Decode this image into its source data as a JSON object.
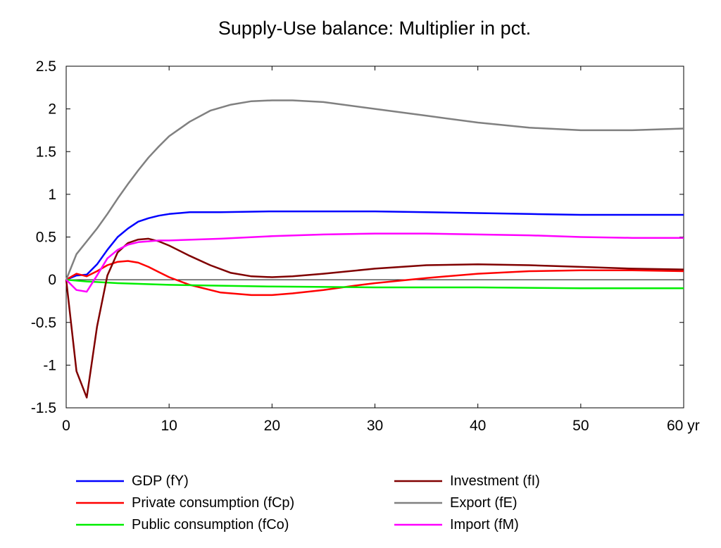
{
  "chart_data": {
    "type": "line",
    "title": "Supply-Use balance: Multiplier in pct.",
    "xlabel": "",
    "ylabel": "",
    "x_unit": "yr",
    "xlim": [
      0,
      60
    ],
    "ylim": [
      -1.5,
      2.5
    ],
    "x_ticks": [
      0,
      10,
      20,
      30,
      40,
      50,
      60
    ],
    "x_tick_labels": [
      "0",
      "10",
      "20",
      "30",
      "40",
      "50",
      "60 yr"
    ],
    "y_ticks": [
      -1.5,
      -1,
      -0.5,
      0,
      0.5,
      1,
      1.5,
      2,
      2.5
    ],
    "y_tick_labels": [
      "-1.5",
      "-1",
      "-0.5",
      "0",
      "0.5",
      "1",
      "1.5",
      "2",
      "2.5"
    ],
    "zero_line": true,
    "grid": false,
    "legend_position": "bottom",
    "series": [
      {
        "name": "GDP (fY)",
        "color": "#0000ff",
        "points": [
          [
            0,
            0
          ],
          [
            1,
            0.05
          ],
          [
            2,
            0.06
          ],
          [
            3,
            0.18
          ],
          [
            4,
            0.35
          ],
          [
            5,
            0.5
          ],
          [
            6,
            0.6
          ],
          [
            7,
            0.68
          ],
          [
            8,
            0.72
          ],
          [
            9,
            0.75
          ],
          [
            10,
            0.77
          ],
          [
            12,
            0.79
          ],
          [
            15,
            0.79
          ],
          [
            20,
            0.8
          ],
          [
            25,
            0.8
          ],
          [
            30,
            0.8
          ],
          [
            35,
            0.79
          ],
          [
            40,
            0.78
          ],
          [
            45,
            0.77
          ],
          [
            50,
            0.76
          ],
          [
            55,
            0.76
          ],
          [
            60,
            0.76
          ]
        ]
      },
      {
        "name": "Private consumption (fCp)",
        "color": "#ff0000",
        "points": [
          [
            0,
            0
          ],
          [
            1,
            0.07
          ],
          [
            2,
            0.04
          ],
          [
            3,
            0.1
          ],
          [
            4,
            0.17
          ],
          [
            5,
            0.21
          ],
          [
            6,
            0.22
          ],
          [
            7,
            0.2
          ],
          [
            8,
            0.15
          ],
          [
            9,
            0.09
          ],
          [
            10,
            0.03
          ],
          [
            12,
            -0.06
          ],
          [
            15,
            -0.15
          ],
          [
            18,
            -0.18
          ],
          [
            20,
            -0.18
          ],
          [
            22,
            -0.16
          ],
          [
            25,
            -0.12
          ],
          [
            28,
            -0.07
          ],
          [
            30,
            -0.04
          ],
          [
            35,
            0.02
          ],
          [
            40,
            0.07
          ],
          [
            45,
            0.1
          ],
          [
            50,
            0.11
          ],
          [
            55,
            0.11
          ],
          [
            60,
            0.1
          ]
        ]
      },
      {
        "name": "Public consumption (fCo)",
        "color": "#00ee00",
        "points": [
          [
            0,
            0
          ],
          [
            2,
            -0.02
          ],
          [
            5,
            -0.04
          ],
          [
            10,
            -0.06
          ],
          [
            15,
            -0.07
          ],
          [
            20,
            -0.08
          ],
          [
            30,
            -0.09
          ],
          [
            40,
            -0.09
          ],
          [
            50,
            -0.1
          ],
          [
            60,
            -0.1
          ]
        ]
      },
      {
        "name": "Investment (fI)",
        "color": "#800000",
        "points": [
          [
            0,
            0
          ],
          [
            1,
            -1.07
          ],
          [
            2,
            -1.38
          ],
          [
            3,
            -0.55
          ],
          [
            4,
            0.05
          ],
          [
            5,
            0.32
          ],
          [
            6,
            0.43
          ],
          [
            7,
            0.47
          ],
          [
            8,
            0.48
          ],
          [
            9,
            0.45
          ],
          [
            10,
            0.4
          ],
          [
            12,
            0.28
          ],
          [
            14,
            0.17
          ],
          [
            16,
            0.08
          ],
          [
            18,
            0.04
          ],
          [
            20,
            0.03
          ],
          [
            22,
            0.04
          ],
          [
            25,
            0.07
          ],
          [
            30,
            0.13
          ],
          [
            35,
            0.17
          ],
          [
            40,
            0.18
          ],
          [
            45,
            0.17
          ],
          [
            50,
            0.15
          ],
          [
            55,
            0.13
          ],
          [
            60,
            0.12
          ]
        ]
      },
      {
        "name": "Export (fE)",
        "color": "#808080",
        "points": [
          [
            0,
            0
          ],
          [
            1,
            0.3
          ],
          [
            2,
            0.45
          ],
          [
            3,
            0.6
          ],
          [
            4,
            0.77
          ],
          [
            5,
            0.95
          ],
          [
            6,
            1.12
          ],
          [
            7,
            1.28
          ],
          [
            8,
            1.43
          ],
          [
            9,
            1.56
          ],
          [
            10,
            1.68
          ],
          [
            12,
            1.85
          ],
          [
            14,
            1.98
          ],
          [
            16,
            2.05
          ],
          [
            18,
            2.09
          ],
          [
            20,
            2.1
          ],
          [
            22,
            2.1
          ],
          [
            25,
            2.08
          ],
          [
            30,
            2.0
          ],
          [
            35,
            1.92
          ],
          [
            40,
            1.84
          ],
          [
            45,
            1.78
          ],
          [
            50,
            1.75
          ],
          [
            55,
            1.75
          ],
          [
            60,
            1.77
          ]
        ]
      },
      {
        "name": "Import (fM)",
        "color": "#ff00ff",
        "points": [
          [
            0,
            0
          ],
          [
            1,
            -0.12
          ],
          [
            2,
            -0.14
          ],
          [
            3,
            0.05
          ],
          [
            4,
            0.25
          ],
          [
            5,
            0.35
          ],
          [
            6,
            0.41
          ],
          [
            7,
            0.44
          ],
          [
            8,
            0.45
          ],
          [
            9,
            0.46
          ],
          [
            10,
            0.46
          ],
          [
            15,
            0.48
          ],
          [
            20,
            0.51
          ],
          [
            25,
            0.53
          ],
          [
            30,
            0.54
          ],
          [
            35,
            0.54
          ],
          [
            40,
            0.53
          ],
          [
            45,
            0.52
          ],
          [
            50,
            0.5
          ],
          [
            55,
            0.49
          ],
          [
            60,
            0.49
          ]
        ]
      }
    ]
  }
}
